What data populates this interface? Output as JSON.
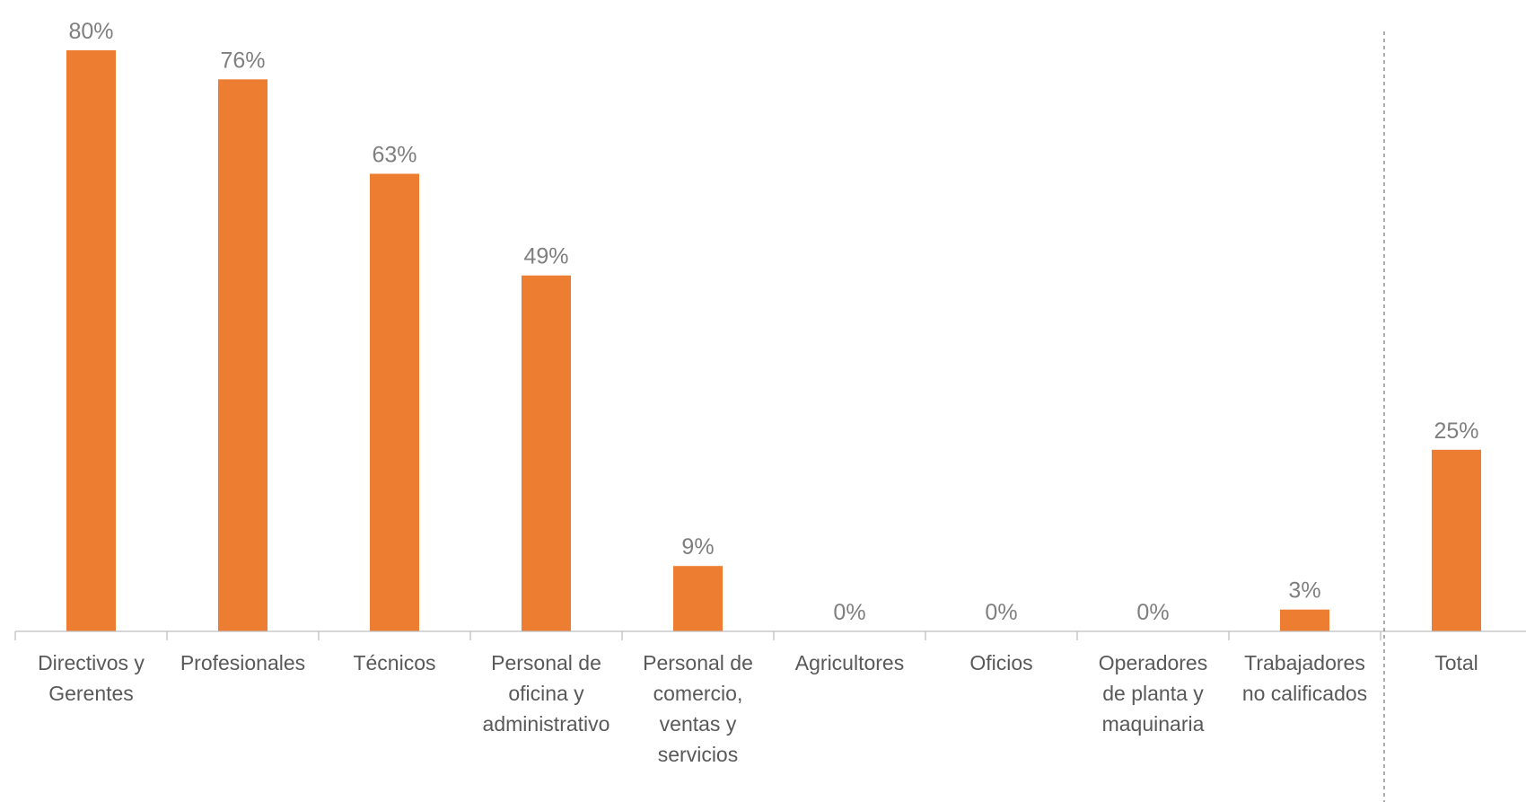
{
  "chart_data": {
    "type": "bar",
    "categories": [
      [
        "Directivos y",
        "Gerentes"
      ],
      [
        "Profesionales"
      ],
      [
        "Técnicos"
      ],
      [
        "Personal de",
        "oficina y",
        "administrativo"
      ],
      [
        "Personal de",
        "comercio,",
        "ventas y",
        "servicios"
      ],
      [
        "Agricultores"
      ],
      [
        "Oficios"
      ],
      [
        "Operadores",
        "de planta y",
        "maquinaria"
      ],
      [
        "Trabajadores",
        "no calificados"
      ],
      [
        "Total"
      ]
    ],
    "values": [
      80,
      76,
      63,
      49,
      9,
      0,
      0,
      0,
      3,
      25
    ],
    "data_labels": [
      "80%",
      "76%",
      "63%",
      "49%",
      "9%",
      "0%",
      "0%",
      "0%",
      "3%",
      "25%"
    ],
    "ylim": [
      0,
      80
    ],
    "grid": false,
    "separator_before": "Total",
    "colors": {
      "bar": "#ED7D31",
      "axis": "#bfbfbf",
      "separator": "#7f7f7f",
      "data_label": "#7f7f7f",
      "category_label": "#595959"
    }
  }
}
